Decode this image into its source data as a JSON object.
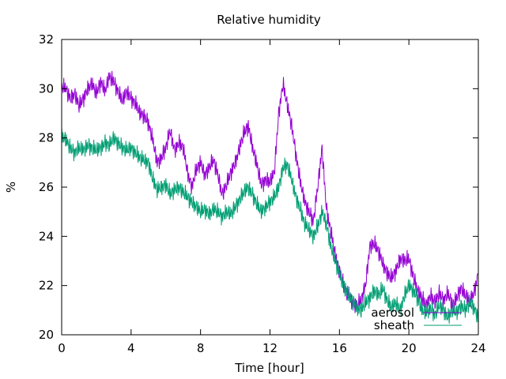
{
  "chart_data": {
    "type": "line",
    "title": "Relative humidity",
    "xlabel": "Time [hour]",
    "ylabel": "%",
    "xlim": [
      0,
      24
    ],
    "ylim": [
      20,
      32
    ],
    "xticks": [
      0,
      4,
      8,
      12,
      16,
      20,
      24
    ],
    "xtick_labels": [
      "0",
      "4",
      "8",
      "12",
      "16",
      "20",
      "24"
    ],
    "yticks": [
      20,
      22,
      24,
      26,
      28,
      30,
      32
    ],
    "ytick_labels": [
      "20",
      "22",
      "24",
      "26",
      "28",
      "30",
      "32"
    ],
    "grid": false,
    "legend_position": "bottom-right",
    "series": [
      {
        "name": "aerosol",
        "color": "#9400d3",
        "points": [
          [
            0.0,
            30.1
          ],
          [
            0.25,
            30.0
          ],
          [
            0.5,
            29.6
          ],
          [
            0.75,
            29.8
          ],
          [
            1.0,
            29.3
          ],
          [
            1.25,
            29.6
          ],
          [
            1.5,
            30.0
          ],
          [
            1.75,
            30.2
          ],
          [
            2.0,
            29.8
          ],
          [
            2.25,
            30.3
          ],
          [
            2.5,
            29.9
          ],
          [
            2.75,
            30.5
          ],
          [
            3.0,
            30.3
          ],
          [
            3.25,
            29.9
          ],
          [
            3.5,
            29.5
          ],
          [
            3.75,
            29.9
          ],
          [
            4.0,
            29.6
          ],
          [
            4.25,
            29.4
          ],
          [
            4.5,
            29.0
          ],
          [
            4.75,
            28.9
          ],
          [
            5.0,
            28.6
          ],
          [
            5.25,
            27.9
          ],
          [
            5.5,
            27.0
          ],
          [
            5.75,
            27.2
          ],
          [
            6.0,
            27.6
          ],
          [
            6.25,
            28.3
          ],
          [
            6.5,
            27.5
          ],
          [
            6.75,
            27.8
          ],
          [
            7.0,
            27.6
          ],
          [
            7.25,
            26.6
          ],
          [
            7.5,
            26.0
          ],
          [
            7.75,
            26.7
          ],
          [
            8.0,
            27.0
          ],
          [
            8.25,
            26.5
          ],
          [
            8.5,
            26.8
          ],
          [
            8.75,
            27.1
          ],
          [
            9.0,
            26.5
          ],
          [
            9.25,
            25.7
          ],
          [
            9.5,
            26.1
          ],
          [
            9.75,
            26.6
          ],
          [
            10.0,
            27.0
          ],
          [
            10.25,
            27.6
          ],
          [
            10.5,
            28.2
          ],
          [
            10.75,
            28.5
          ],
          [
            11.0,
            27.6
          ],
          [
            11.25,
            26.9
          ],
          [
            11.5,
            26.1
          ],
          [
            11.75,
            26.3
          ],
          [
            12.0,
            26.2
          ],
          [
            12.25,
            26.6
          ],
          [
            12.5,
            29.0
          ],
          [
            12.75,
            30.2
          ],
          [
            13.0,
            29.3
          ],
          [
            13.25,
            28.5
          ],
          [
            13.5,
            27.3
          ],
          [
            13.75,
            26.2
          ],
          [
            14.0,
            25.4
          ],
          [
            14.25,
            25.0
          ],
          [
            14.5,
            24.6
          ],
          [
            14.75,
            26.0
          ],
          [
            15.0,
            27.6
          ],
          [
            15.25,
            25.1
          ],
          [
            15.5,
            24.2
          ],
          [
            15.75,
            23.3
          ],
          [
            16.0,
            22.6
          ],
          [
            16.25,
            22.0
          ],
          [
            16.5,
            21.6
          ],
          [
            16.75,
            21.3
          ],
          [
            17.0,
            21.2
          ],
          [
            17.25,
            21.4
          ],
          [
            17.5,
            22.0
          ],
          [
            17.75,
            23.6
          ],
          [
            18.0,
            23.7
          ],
          [
            18.25,
            23.4
          ],
          [
            18.5,
            22.9
          ],
          [
            18.75,
            22.5
          ],
          [
            19.0,
            22.3
          ],
          [
            19.25,
            22.6
          ],
          [
            19.5,
            23.1
          ],
          [
            19.75,
            23.0
          ],
          [
            20.0,
            23.1
          ],
          [
            20.25,
            22.4
          ],
          [
            20.5,
            21.8
          ],
          [
            20.75,
            21.5
          ],
          [
            21.0,
            21.2
          ],
          [
            21.25,
            21.6
          ],
          [
            21.5,
            21.3
          ],
          [
            21.75,
            21.7
          ],
          [
            22.0,
            21.4
          ],
          [
            22.25,
            21.7
          ],
          [
            22.5,
            21.2
          ],
          [
            22.75,
            21.5
          ],
          [
            23.0,
            21.9
          ],
          [
            23.25,
            21.6
          ],
          [
            23.5,
            21.4
          ],
          [
            23.75,
            21.7
          ],
          [
            24.0,
            22.5
          ]
        ]
      },
      {
        "name": "sheath",
        "color": "#009e73",
        "points": [
          [
            0.0,
            28.1
          ],
          [
            0.25,
            27.9
          ],
          [
            0.5,
            27.6
          ],
          [
            0.75,
            27.4
          ],
          [
            1.0,
            27.6
          ],
          [
            1.25,
            27.5
          ],
          [
            1.5,
            27.7
          ],
          [
            1.75,
            27.6
          ],
          [
            2.0,
            27.5
          ],
          [
            2.25,
            27.6
          ],
          [
            2.5,
            27.8
          ],
          [
            2.75,
            27.7
          ],
          [
            3.0,
            28.0
          ],
          [
            3.25,
            27.8
          ],
          [
            3.5,
            27.6
          ],
          [
            3.75,
            27.5
          ],
          [
            4.0,
            27.6
          ],
          [
            4.25,
            27.4
          ],
          [
            4.5,
            27.2
          ],
          [
            4.75,
            27.1
          ],
          [
            5.0,
            27.0
          ],
          [
            5.25,
            26.3
          ],
          [
            5.5,
            25.9
          ],
          [
            5.75,
            26.0
          ],
          [
            6.0,
            26.1
          ],
          [
            6.25,
            25.7
          ],
          [
            6.5,
            25.9
          ],
          [
            6.75,
            26.0
          ],
          [
            7.0,
            25.8
          ],
          [
            7.25,
            25.6
          ],
          [
            7.5,
            25.4
          ],
          [
            7.75,
            25.2
          ],
          [
            8.0,
            25.0
          ],
          [
            8.25,
            25.1
          ],
          [
            8.5,
            24.9
          ],
          [
            8.75,
            25.1
          ],
          [
            9.0,
            25.0
          ],
          [
            9.25,
            24.8
          ],
          [
            9.5,
            25.0
          ],
          [
            9.75,
            24.9
          ],
          [
            10.0,
            25.2
          ],
          [
            10.25,
            25.5
          ],
          [
            10.5,
            25.8
          ],
          [
            10.75,
            26.0
          ],
          [
            11.0,
            25.7
          ],
          [
            11.25,
            25.3
          ],
          [
            11.5,
            25.0
          ],
          [
            11.75,
            25.2
          ],
          [
            12.0,
            25.4
          ],
          [
            12.25,
            25.6
          ],
          [
            12.5,
            26.0
          ],
          [
            12.75,
            26.8
          ],
          [
            13.0,
            26.9
          ],
          [
            13.25,
            26.3
          ],
          [
            13.5,
            25.6
          ],
          [
            13.75,
            25.1
          ],
          [
            14.0,
            24.5
          ],
          [
            14.25,
            24.3
          ],
          [
            14.5,
            24.0
          ],
          [
            14.75,
            24.4
          ],
          [
            15.0,
            25.0
          ],
          [
            15.25,
            24.5
          ],
          [
            15.5,
            23.6
          ],
          [
            15.75,
            23.0
          ],
          [
            16.0,
            22.5
          ],
          [
            16.25,
            22.0
          ],
          [
            16.5,
            21.6
          ],
          [
            16.75,
            21.4
          ],
          [
            17.0,
            21.1
          ],
          [
            17.25,
            21.0
          ],
          [
            17.5,
            21.3
          ],
          [
            17.75,
            21.5
          ],
          [
            18.0,
            21.8
          ],
          [
            18.25,
            21.6
          ],
          [
            18.5,
            21.9
          ],
          [
            18.75,
            21.4
          ],
          [
            19.0,
            21.1
          ],
          [
            19.25,
            21.3
          ],
          [
            19.5,
            21.0
          ],
          [
            19.75,
            21.6
          ],
          [
            20.0,
            22.0
          ],
          [
            20.25,
            21.8
          ],
          [
            20.5,
            21.5
          ],
          [
            20.75,
            21.0
          ],
          [
            21.0,
            20.9
          ],
          [
            21.25,
            21.1
          ],
          [
            21.5,
            20.8
          ],
          [
            21.75,
            21.2
          ],
          [
            22.0,
            21.0
          ],
          [
            22.25,
            20.7
          ],
          [
            22.5,
            21.0
          ],
          [
            22.75,
            20.9
          ],
          [
            23.0,
            21.2
          ],
          [
            23.25,
            21.0
          ],
          [
            23.5,
            21.3
          ],
          [
            23.75,
            21.1
          ],
          [
            24.0,
            20.7
          ]
        ]
      }
    ]
  }
}
